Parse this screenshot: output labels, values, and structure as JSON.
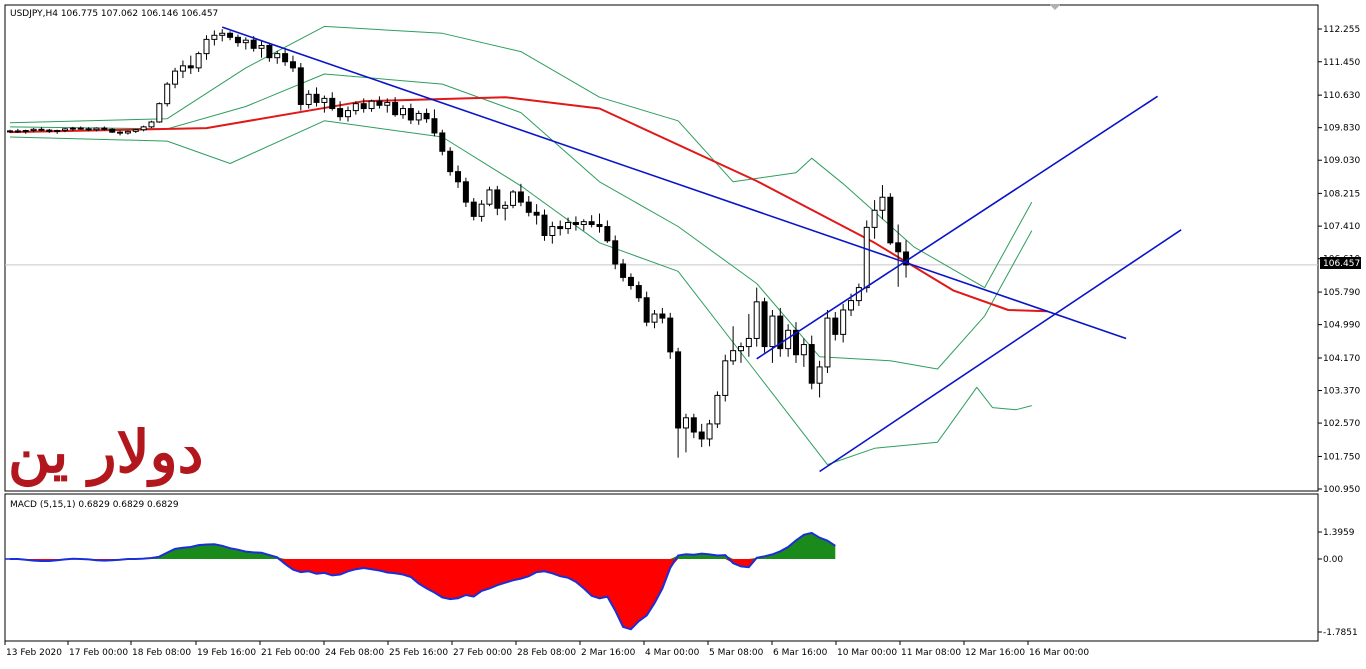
{
  "window": {
    "symbol_info": "USDJPY,H4  106.775 107.062 106.146 106.457",
    "current_price_label": "106.457",
    "watermark": "دولار ين"
  },
  "colors": {
    "background": "#ffffff",
    "bull_body": "#ffffff",
    "bear_body": "#000000",
    "moving_average": "#e01818",
    "bollinger": "#2e9e5e",
    "trendlines": "#0a14c8",
    "macd_positive": "#1a8a1a",
    "macd_negative": "#ff0000",
    "macd_line": "#1a2fd8",
    "brand": "#b3171e"
  },
  "chart_data": [
    {
      "type": "candlestick",
      "title": "USDJPY,H4",
      "ohlc_last": {
        "open": 106.775,
        "high": 107.062,
        "low": 106.146,
        "close": 106.457
      },
      "ylim": [
        10.95,
        112.255
      ],
      "yticks": [
        "112.255",
        "111.450",
        "110.630",
        "109.830",
        "109.030",
        "108.215",
        "107.410",
        "106.610",
        "105.790",
        "104.990",
        "104.170",
        "103.370",
        "102.570",
        "101.750",
        "100.950"
      ],
      "x_tick_labels": [
        "13 Feb 2020",
        "17 Feb 00:00",
        "18 Feb 08:00",
        "19 Feb 16:00",
        "21 Feb 00:00",
        "24 Feb 08:00",
        "25 Feb 16:00",
        "27 Feb 00:00",
        "28 Feb 08:00",
        "2 Mar 16:00",
        "4 Mar 00:00",
        "5 Mar 08:00",
        "6 Mar 16:00",
        "10 Mar 00:00",
        "11 Mar 08:00",
        "12 Mar 16:00",
        "16 Mar 00:00"
      ],
      "candles": [
        [
          109.73,
          109.78,
          109.7,
          109.75
        ],
        [
          109.75,
          109.8,
          109.7,
          109.74
        ],
        [
          109.74,
          109.78,
          109.68,
          109.76
        ],
        [
          109.76,
          109.82,
          109.72,
          109.79
        ],
        [
          109.79,
          109.84,
          109.74,
          109.77
        ],
        [
          109.77,
          109.8,
          109.7,
          109.74
        ],
        [
          109.74,
          109.78,
          109.68,
          109.76
        ],
        [
          109.76,
          109.82,
          109.72,
          109.8
        ],
        [
          109.8,
          109.85,
          109.75,
          109.82
        ],
        [
          109.82,
          109.86,
          109.78,
          109.8
        ],
        [
          109.8,
          109.84,
          109.74,
          109.78
        ],
        [
          109.78,
          109.84,
          109.74,
          109.82
        ],
        [
          109.82,
          109.86,
          109.76,
          109.79
        ],
        [
          109.79,
          109.82,
          109.7,
          109.72
        ],
        [
          109.72,
          109.76,
          109.64,
          109.7
        ],
        [
          109.7,
          109.76,
          109.66,
          109.74
        ],
        [
          109.74,
          109.8,
          109.7,
          109.78
        ],
        [
          109.78,
          109.88,
          109.74,
          109.85
        ],
        [
          109.85,
          110.0,
          109.82,
          109.97
        ],
        [
          109.97,
          110.45,
          109.95,
          110.42
        ],
        [
          110.42,
          110.95,
          110.35,
          110.9
        ],
        [
          110.9,
          111.3,
          110.8,
          111.22
        ],
        [
          111.22,
          111.48,
          111.05,
          111.35
        ],
        [
          111.35,
          111.6,
          111.15,
          111.3
        ],
        [
          111.3,
          111.7,
          111.2,
          111.65
        ],
        [
          111.65,
          112.1,
          111.5,
          112.0
        ],
        [
          112.0,
          112.22,
          111.85,
          112.1
        ],
        [
          112.1,
          112.25,
          111.95,
          112.15
        ],
        [
          112.15,
          112.2,
          111.98,
          112.05
        ],
        [
          112.05,
          112.12,
          111.82,
          111.92
        ],
        [
          111.92,
          112.05,
          111.75,
          111.98
        ],
        [
          111.98,
          112.08,
          111.7,
          111.78
        ],
        [
          111.78,
          111.95,
          111.55,
          111.85
        ],
        [
          111.85,
          111.92,
          111.45,
          111.55
        ],
        [
          111.55,
          111.72,
          111.4,
          111.65
        ],
        [
          111.65,
          111.78,
          111.35,
          111.45
        ],
        [
          111.45,
          111.6,
          111.2,
          111.3
        ],
        [
          111.3,
          111.42,
          110.25,
          110.4
        ],
        [
          110.4,
          110.75,
          110.3,
          110.65
        ],
        [
          110.65,
          110.82,
          110.35,
          110.45
        ],
        [
          110.45,
          110.62,
          110.2,
          110.55
        ],
        [
          110.55,
          110.7,
          110.25,
          110.3
        ],
        [
          110.3,
          110.48,
          110.0,
          110.1
        ],
        [
          110.1,
          110.35,
          109.98,
          110.25
        ],
        [
          110.25,
          110.48,
          110.15,
          110.42
        ],
        [
          110.42,
          110.55,
          110.2,
          110.3
        ],
        [
          110.3,
          110.52,
          110.22,
          110.48
        ],
        [
          110.48,
          110.6,
          110.3,
          110.38
        ],
        [
          110.38,
          110.55,
          110.2,
          110.45
        ],
        [
          110.45,
          110.58,
          110.1,
          110.15
        ],
        [
          110.15,
          110.38,
          110.05,
          110.3
        ],
        [
          110.3,
          110.42,
          109.92,
          110.02
        ],
        [
          110.02,
          110.25,
          109.9,
          110.18
        ],
        [
          110.18,
          110.3,
          109.95,
          110.05
        ],
        [
          110.05,
          110.28,
          109.62,
          109.7
        ],
        [
          109.7,
          109.78,
          109.15,
          109.25
        ],
        [
          109.25,
          109.35,
          108.65,
          108.75
        ],
        [
          108.75,
          108.9,
          108.35,
          108.5
        ],
        [
          108.5,
          108.6,
          107.88,
          108.0
        ],
        [
          108.0,
          108.1,
          107.55,
          107.65
        ],
        [
          107.65,
          108.05,
          107.52,
          107.95
        ],
        [
          107.95,
          108.38,
          107.9,
          108.3
        ],
        [
          108.3,
          108.4,
          107.68,
          107.85
        ],
        [
          107.85,
          108.02,
          107.55,
          107.92
        ],
        [
          107.92,
          108.3,
          107.85,
          108.25
        ],
        [
          108.25,
          108.45,
          107.9,
          108.0
        ],
        [
          108.0,
          108.15,
          107.65,
          107.75
        ],
        [
          107.75,
          107.95,
          107.45,
          107.68
        ],
        [
          107.68,
          107.82,
          107.05,
          107.18
        ],
        [
          107.18,
          107.52,
          106.98,
          107.4
        ],
        [
          107.4,
          107.55,
          107.18,
          107.35
        ],
        [
          107.35,
          107.62,
          107.22,
          107.5
        ],
        [
          107.5,
          107.65,
          107.3,
          107.45
        ],
        [
          107.45,
          107.58,
          107.3,
          107.52
        ],
        [
          107.52,
          107.68,
          107.38,
          107.45
        ],
        [
          107.45,
          107.72,
          107.25,
          107.4
        ],
        [
          107.4,
          107.55,
          107.0,
          107.05
        ],
        [
          107.05,
          107.18,
          106.35,
          106.48
        ],
        [
          106.48,
          106.6,
          106.05,
          106.15
        ],
        [
          106.15,
          106.25,
          105.85,
          105.95
        ],
        [
          105.95,
          106.05,
          105.55,
          105.65
        ],
        [
          105.65,
          105.8,
          104.95,
          105.05
        ],
        [
          105.05,
          105.35,
          104.9,
          105.25
        ],
        [
          105.25,
          105.4,
          105.02,
          105.15
        ],
        [
          105.15,
          105.28,
          104.15,
          104.32
        ],
        [
          104.32,
          104.42,
          101.72,
          102.45
        ],
        [
          102.45,
          102.8,
          101.85,
          102.7
        ],
        [
          102.7,
          102.8,
          102.2,
          102.35
        ],
        [
          102.35,
          102.55,
          101.98,
          102.18
        ],
        [
          102.18,
          102.65,
          102.0,
          102.55
        ],
        [
          102.55,
          103.35,
          102.45,
          103.25
        ],
        [
          103.25,
          104.25,
          103.1,
          104.1
        ],
        [
          104.1,
          104.95,
          104.0,
          104.35
        ],
        [
          104.35,
          104.55,
          104.05,
          104.45
        ],
        [
          104.45,
          105.25,
          104.2,
          104.65
        ],
        [
          104.65,
          105.9,
          104.45,
          105.55
        ],
        [
          105.55,
          105.65,
          104.3,
          104.45
        ],
        [
          104.45,
          105.35,
          104.05,
          105.2
        ],
        [
          105.2,
          105.4,
          104.2,
          104.4
        ],
        [
          104.4,
          105.0,
          104.2,
          104.85
        ],
        [
          104.85,
          105.05,
          104.05,
          104.25
        ],
        [
          104.25,
          104.65,
          103.95,
          104.5
        ],
        [
          104.5,
          104.72,
          103.4,
          103.55
        ],
        [
          103.55,
          104.1,
          103.2,
          103.95
        ],
        [
          103.95,
          105.35,
          103.8,
          105.15
        ],
        [
          105.15,
          105.3,
          104.6,
          104.75
        ],
        [
          104.75,
          105.5,
          104.55,
          105.35
        ],
        [
          105.35,
          105.75,
          105.2,
          105.58
        ],
        [
          105.58,
          106.0,
          105.45,
          105.9
        ],
        [
          105.9,
          107.55,
          105.78,
          107.38
        ],
        [
          107.38,
          108.05,
          107.1,
          107.8
        ],
        [
          107.8,
          108.42,
          107.58,
          108.12
        ],
        [
          108.12,
          108.22,
          106.95,
          107.0
        ],
        [
          107.0,
          107.45,
          105.92,
          106.78
        ],
        [
          106.775,
          107.062,
          106.146,
          106.457
        ]
      ],
      "moving_average": [
        [
          0,
          109.72
        ],
        [
          25,
          109.82
        ],
        [
          45,
          110.48
        ],
        [
          63,
          110.58
        ],
        [
          75,
          110.3
        ],
        [
          95,
          108.52
        ],
        [
          110,
          107.0
        ],
        [
          120,
          105.83
        ],
        [
          127,
          105.35
        ],
        [
          132,
          105.32
        ]
      ],
      "bollinger_upper": [
        [
          0,
          109.95
        ],
        [
          20,
          110.05
        ],
        [
          30,
          111.3
        ],
        [
          40,
          112.32
        ],
        [
          55,
          112.15
        ],
        [
          65,
          111.7
        ],
        [
          75,
          110.58
        ],
        [
          85,
          110.0
        ],
        [
          92,
          108.5
        ],
        [
          100,
          108.72
        ],
        [
          102,
          109.08
        ],
        [
          106,
          108.45
        ],
        [
          115,
          106.9
        ],
        [
          124,
          105.9
        ],
        [
          130,
          108.0
        ]
      ],
      "bollinger_middle": [
        [
          0,
          109.85
        ],
        [
          20,
          109.8
        ],
        [
          30,
          110.35
        ],
        [
          40,
          111.15
        ],
        [
          55,
          110.9
        ],
        [
          65,
          110.2
        ],
        [
          75,
          108.5
        ],
        [
          85,
          107.4
        ],
        [
          95,
          106.0
        ],
        [
          103,
          104.2
        ],
        [
          112,
          104.1
        ],
        [
          118,
          103.9
        ],
        [
          124,
          105.2
        ],
        [
          130,
          107.3
        ]
      ],
      "bollinger_lower": [
        [
          0,
          109.6
        ],
        [
          20,
          109.5
        ],
        [
          28,
          108.95
        ],
        [
          40,
          110.0
        ],
        [
          55,
          109.6
        ],
        [
          65,
          108.4
        ],
        [
          75,
          107.0
        ],
        [
          85,
          106.3
        ],
        [
          95,
          103.8
        ],
        [
          104,
          101.55
        ],
        [
          110,
          101.95
        ],
        [
          118,
          102.1
        ],
        [
          123,
          103.45
        ],
        [
          125,
          102.95
        ],
        [
          128,
          102.9
        ],
        [
          130,
          103.0
        ]
      ],
      "trendlines": [
        {
          "from": [
            27,
            112.3
          ],
          "to": [
            142,
            104.65
          ]
        },
        {
          "from": [
            95,
            104.15
          ],
          "to": [
            146,
            110.6
          ]
        },
        {
          "from": [
            103,
            101.38
          ],
          "to": [
            149,
            107.32
          ]
        }
      ]
    },
    {
      "type": "area",
      "title": "MACD (5,15,1) 0.6829 0.6829 0.6829",
      "series_name": "MACD",
      "parameters": "5,15,1",
      "ylim": [
        -1.7851,
        1.3959
      ],
      "yticks": [
        "1.3959",
        "0.00",
        "-1.7851"
      ],
      "values": [
        0,
        0,
        -0.02,
        -0.04,
        -0.05,
        -0.05,
        -0.03,
        -0.01,
        0.01,
        0.0,
        -0.01,
        -0.03,
        -0.04,
        -0.03,
        -0.02,
        0.0,
        0.0,
        0.02,
        0.05,
        0.12,
        0.33,
        0.52,
        0.58,
        0.62,
        0.72,
        0.75,
        0.76,
        0.68,
        0.56,
        0.48,
        0.38,
        0.34,
        0.32,
        0.2,
        0.09,
        -0.12,
        -0.26,
        -0.32,
        -0.3,
        -0.36,
        -0.34,
        -0.4,
        -0.38,
        -0.3,
        -0.25,
        -0.22,
        -0.25,
        -0.28,
        -0.33,
        -0.35,
        -0.38,
        -0.44,
        -0.6,
        -0.72,
        -0.82,
        -0.94,
        -0.98,
        -0.96,
        -0.88,
        -0.92,
        -0.78,
        -0.72,
        -0.64,
        -0.58,
        -0.52,
        -0.48,
        -0.42,
        -0.32,
        -0.3,
        -0.35,
        -0.42,
        -0.46,
        -0.56,
        -0.72,
        -0.9,
        -0.96,
        -0.92,
        -1.26,
        -1.66,
        -1.72,
        -1.52,
        -1.38,
        -1.08,
        -0.72,
        -0.22,
        0.18,
        0.25,
        0.22,
        0.28,
        0.24,
        0.18,
        0.2,
        -0.1,
        -0.18,
        -0.2,
        0.06,
        0.14,
        0.24,
        0.4,
        0.62,
        0.96,
        1.25,
        1.35,
        1.1,
        0.95,
        0.68
      ]
    }
  ]
}
